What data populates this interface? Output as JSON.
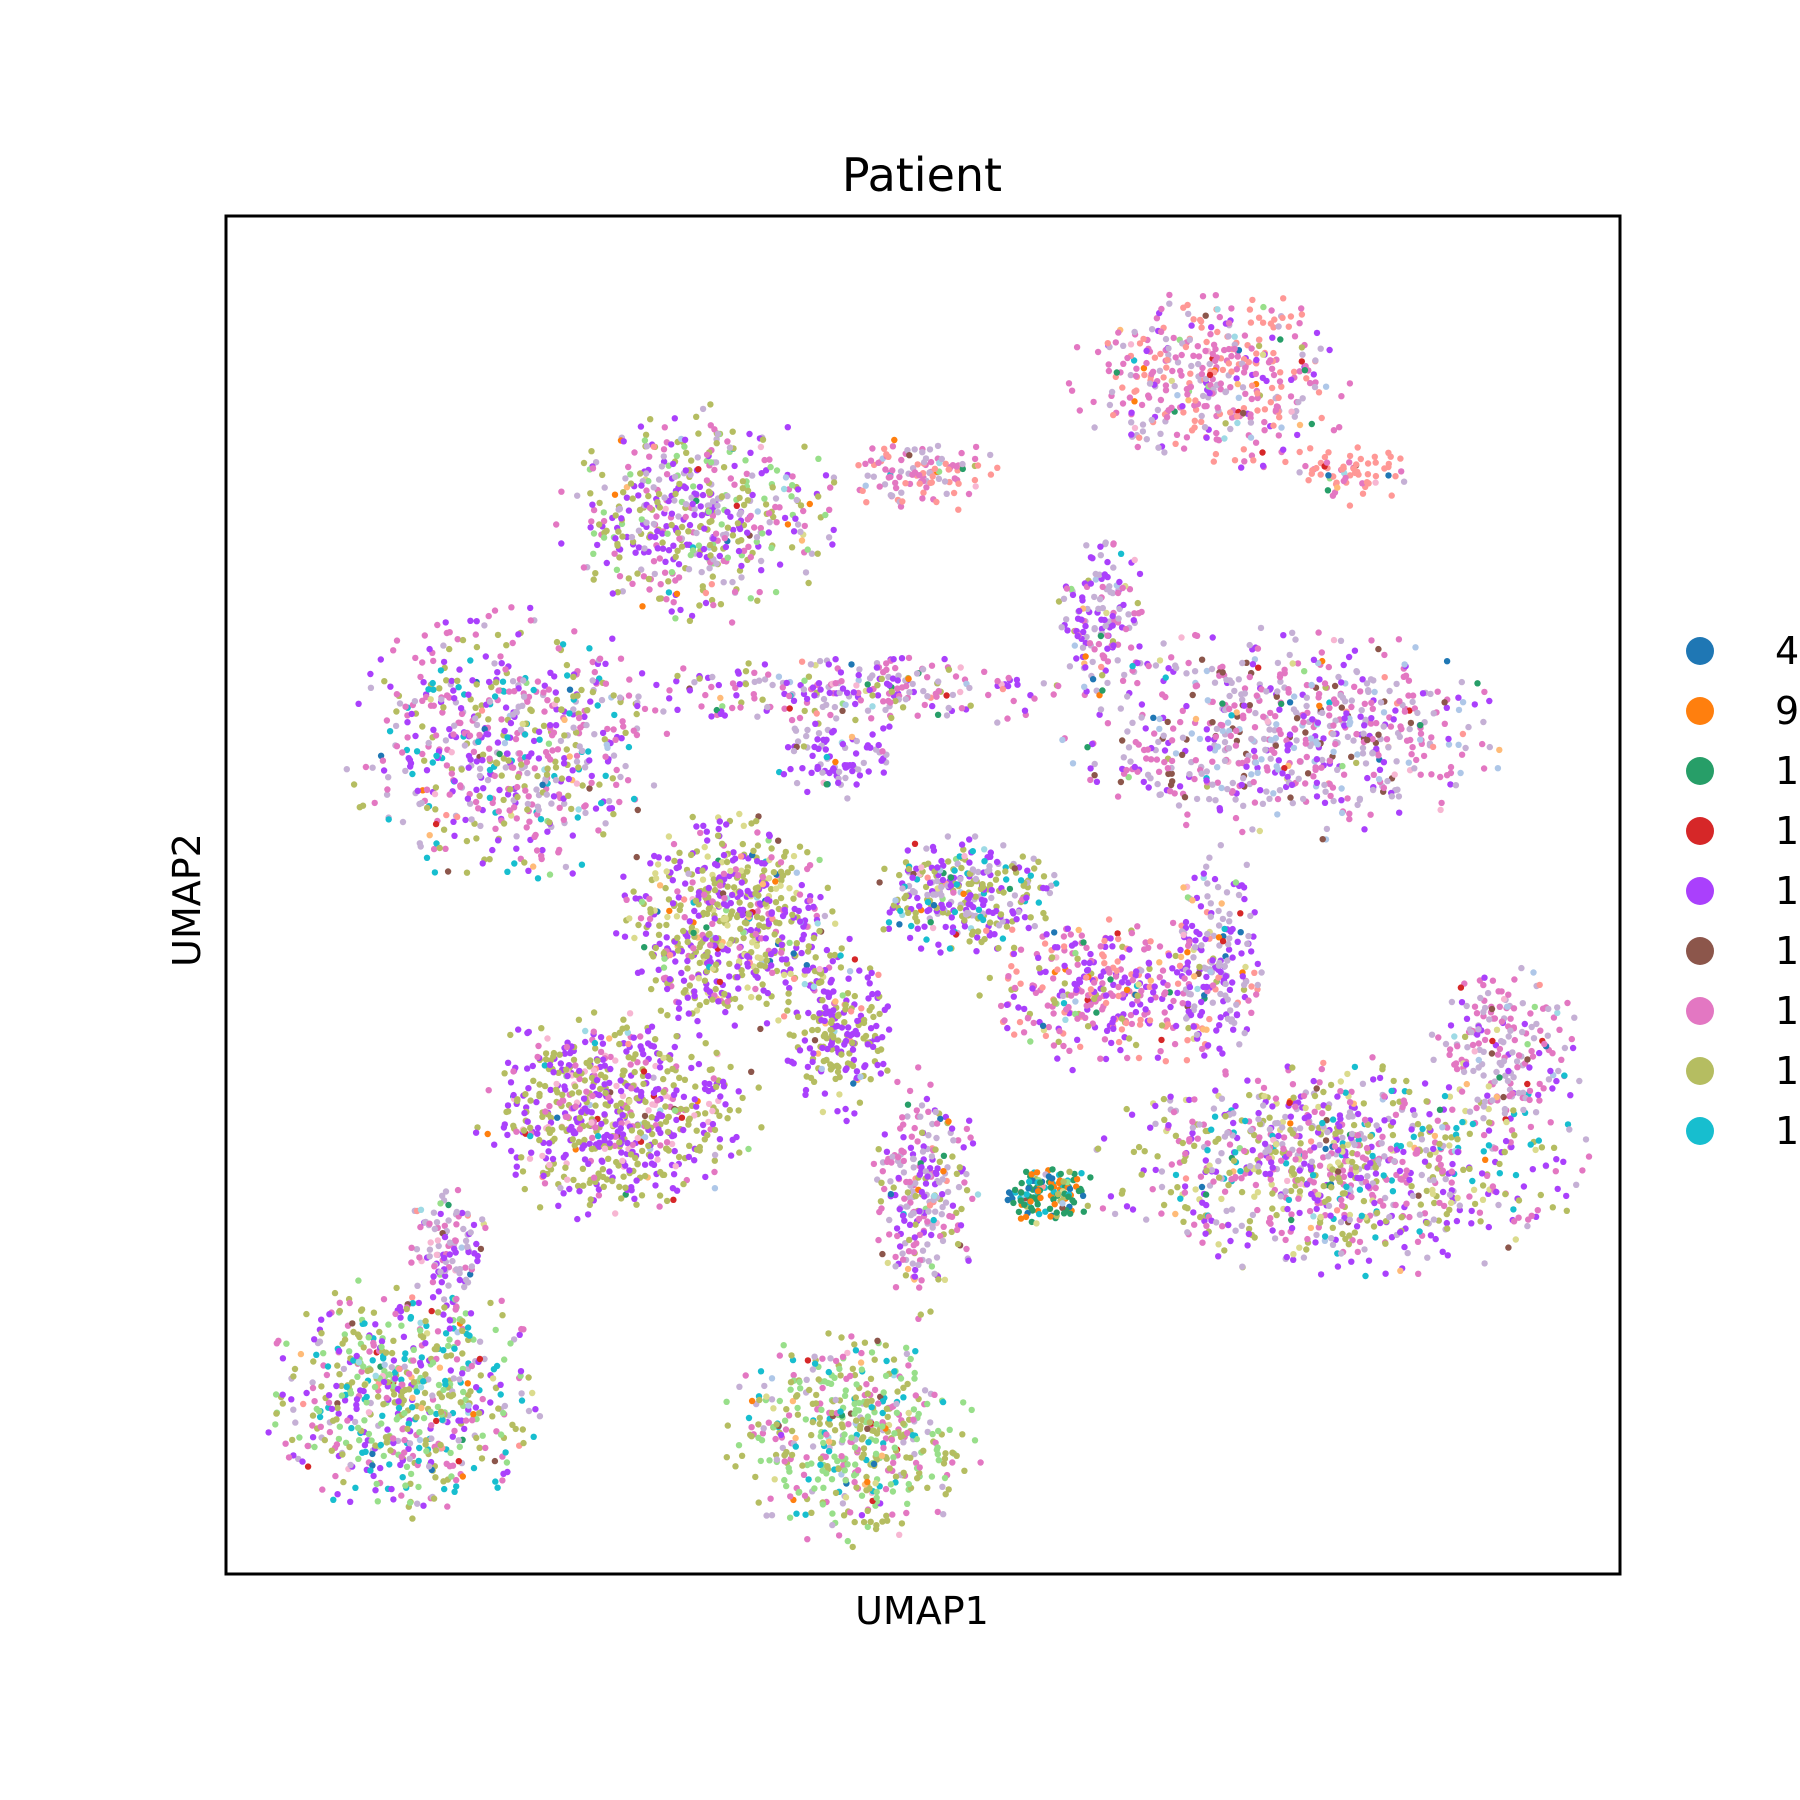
{
  "chart_data": {
    "type": "scatter",
    "title": "Patient",
    "xlabel": "UMAP1",
    "ylabel": "UMAP2",
    "xlim": [
      0,
      100
    ],
    "ylim": [
      0,
      100
    ],
    "grid": false,
    "ticks": false,
    "legend_position": "right",
    "series": [
      {
        "name": "4",
        "color": "#1f77b4"
      },
      {
        "name": "9",
        "color": "#ff7f0e"
      },
      {
        "name": "1",
        "color": "#279e68"
      },
      {
        "name": "1",
        "color": "#d62728"
      },
      {
        "name": "1",
        "color": "#aa40fc"
      },
      {
        "name": "1",
        "color": "#8c564b"
      },
      {
        "name": "1",
        "color": "#e377c2"
      },
      {
        "name": "1",
        "color": "#b5bd61"
      },
      {
        "name": "1",
        "color": "#17becf"
      }
    ],
    "extra_point_colors": [
      "#aec7e8",
      "#ff9896",
      "#c5b0d5",
      "#98df8a",
      "#f7b6d2",
      "#dbdb8d",
      "#9edae5",
      "#ffbb78"
    ],
    "clusters": [
      {
        "id": "top-right-arc",
        "x": 71,
        "y": 88,
        "rx": 9,
        "ry": 6,
        "n": 420,
        "weights": {
          "e377c2": 4,
          "ff9896": 3,
          "c5b0d5": 2,
          "aa40fc": 1
        }
      },
      {
        "id": "top-right-tail",
        "x": 81,
        "y": 81,
        "rx": 4,
        "ry": 2,
        "n": 70,
        "weights": {
          "ff9896": 3,
          "e377c2": 2
        }
      },
      {
        "id": "upper-left-blob",
        "x": 34,
        "y": 78,
        "rx": 9,
        "ry": 7,
        "n": 520,
        "weights": {
          "aa40fc": 3,
          "b5bd61": 3,
          "e377c2": 2,
          "c5b0d5": 2,
          "98df8a": 1
        }
      },
      {
        "id": "upper-bridge",
        "x": 50,
        "y": 81,
        "rx": 5,
        "ry": 2.5,
        "n": 120,
        "weights": {
          "e377c2": 3,
          "c5b0d5": 2,
          "ff9896": 2
        }
      },
      {
        "id": "mid-band",
        "x": 45,
        "y": 65,
        "rx": 15,
        "ry": 2.5,
        "n": 260,
        "weights": {
          "aa40fc": 3,
          "e377c2": 3,
          "c5b0d5": 2,
          "b5bd61": 1
        }
      },
      {
        "id": "right-upper-group",
        "x": 76,
        "y": 62,
        "rx": 14,
        "ry": 7,
        "n": 700,
        "weights": {
          "e377c2": 4,
          "c5b0d5": 3,
          "aa40fc": 2,
          "aec7e8": 1,
          "8c564b": 1
        }
      },
      {
        "id": "right-upper-stem",
        "x": 63,
        "y": 71,
        "rx": 3,
        "ry": 6,
        "n": 150,
        "weights": {
          "aa40fc": 3,
          "c5b0d5": 3,
          "e377c2": 2
        }
      },
      {
        "id": "left-wing",
        "x": 20,
        "y": 61,
        "rx": 10,
        "ry": 9,
        "n": 640,
        "weights": {
          "aa40fc": 3,
          "e377c2": 3,
          "b5bd61": 2,
          "c5b0d5": 2,
          "17becf": 1
        }
      },
      {
        "id": "small-streak",
        "x": 44,
        "y": 60,
        "rx": 4,
        "ry": 2.5,
        "n": 90,
        "weights": {
          "aa40fc": 4,
          "c5b0d5": 2
        }
      },
      {
        "id": "center-blob",
        "x": 36,
        "y": 48,
        "rx": 7,
        "ry": 7,
        "n": 650,
        "weights": {
          "aa40fc": 4,
          "b5bd61": 4,
          "e377c2": 1,
          "dbdb8d": 1
        }
      },
      {
        "id": "center-right-oval",
        "x": 53,
        "y": 50,
        "rx": 6,
        "ry": 4,
        "n": 320,
        "weights": {
          "aa40fc": 3,
          "b5bd61": 3,
          "c5b0d5": 2,
          "17becf": 1
        }
      },
      {
        "id": "center-hook",
        "x": 64,
        "y": 43,
        "rx": 9,
        "ry": 5,
        "n": 380,
        "weights": {
          "aa40fc": 3,
          "e377c2": 3,
          "ff9896": 2,
          "b5bd61": 1
        }
      },
      {
        "id": "center-hook-arm",
        "x": 71,
        "y": 46,
        "rx": 3,
        "ry": 7,
        "n": 160,
        "weights": {
          "aa40fc": 3,
          "c5b0d5": 2
        }
      },
      {
        "id": "vertical-arm",
        "x": 44,
        "y": 40,
        "rx": 3.5,
        "ry": 6,
        "n": 230,
        "weights": {
          "aa40fc": 4,
          "b5bd61": 3
        }
      },
      {
        "id": "lower-left-blob",
        "x": 28,
        "y": 34,
        "rx": 9,
        "ry": 7,
        "n": 700,
        "weights": {
          "aa40fc": 4,
          "b5bd61": 4,
          "e377c2": 1,
          "f7b6d2": 1
        }
      },
      {
        "id": "right-long-band",
        "x": 80,
        "y": 30,
        "rx": 16,
        "ry": 7,
        "n": 950,
        "weights": {
          "aa40fc": 3,
          "b5bd61": 3,
          "e377c2": 3,
          "c5b0d5": 2,
          "dbdb8d": 1,
          "17becf": 1
        }
      },
      {
        "id": "right-upper-tip",
        "x": 92,
        "y": 39,
        "rx": 5,
        "ry": 5,
        "n": 200,
        "weights": {
          "e377c2": 3,
          "c5b0d5": 3,
          "aa40fc": 1
        }
      },
      {
        "id": "small-s-cluster",
        "x": 50,
        "y": 28,
        "rx": 3.5,
        "ry": 8,
        "n": 260,
        "weights": {
          "e377c2": 3,
          "c5b0d5": 3,
          "aa40fc": 2,
          "b5bd61": 1
        }
      },
      {
        "id": "dense-patch",
        "x": 59,
        "y": 28,
        "rx": 3,
        "ry": 2,
        "n": 130,
        "weights": {
          "279e68": 4,
          "17becf": 2,
          "ff7f0e": 2,
          "1f77b4": 1,
          "b5bd61": 1
        }
      },
      {
        "id": "lower-left-ring",
        "x": 13,
        "y": 13,
        "rx": 9,
        "ry": 8,
        "n": 640,
        "weights": {
          "aa40fc": 2,
          "b5bd61": 3,
          "98df8a": 2,
          "e377c2": 2,
          "17becf": 2,
          "c5b0d5": 1
        }
      },
      {
        "id": "lower-left-top",
        "x": 16,
        "y": 24,
        "rx": 3,
        "ry": 4,
        "n": 110,
        "weights": {
          "c5b0d5": 3,
          "aa40fc": 2,
          "e377c2": 2
        }
      },
      {
        "id": "bottom-fan",
        "x": 45,
        "y": 10,
        "rx": 8,
        "ry": 7,
        "n": 520,
        "weights": {
          "b5bd61": 4,
          "98df8a": 3,
          "e377c2": 2,
          "17becf": 1,
          "c5b0d5": 1
        }
      }
    ]
  }
}
